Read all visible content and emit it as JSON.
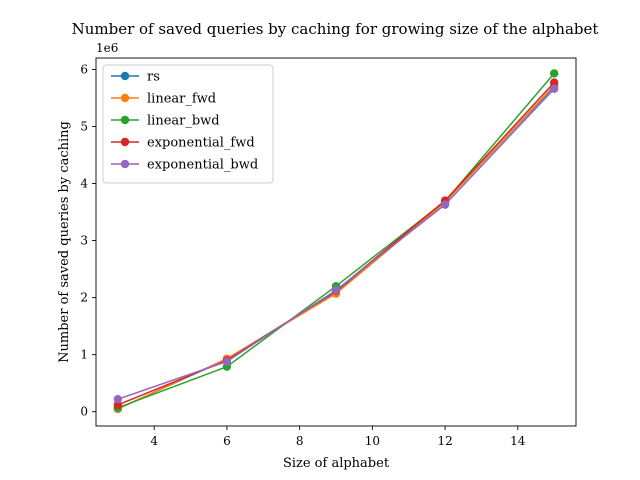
{
  "chart_data": {
    "type": "line",
    "title": "Number of saved queries by caching for growing size of the alphabet",
    "xlabel": "Size of alphabet",
    "ylabel": "Number of saved queries by caching",
    "y_offset_label": "1e6",
    "x": [
      3,
      6,
      9,
      12,
      15
    ],
    "xlim": [
      2.4,
      15.6
    ],
    "ylim": [
      -0.25,
      6.2
    ],
    "y_scale_note": "values in units of 1e6",
    "xticks": [
      4,
      6,
      8,
      10,
      12,
      14
    ],
    "yticks": [
      0,
      1,
      2,
      3,
      4,
      5,
      6
    ],
    "grid": false,
    "legend_position": "upper-left",
    "series": [
      {
        "name": "rs",
        "color": "#1f77b4",
        "values": [
          0.05,
          0.92,
          2.1,
          3.68,
          5.7
        ]
      },
      {
        "name": "linear_fwd",
        "color": "#ff7f0e",
        "values": [
          0.05,
          0.93,
          2.07,
          3.67,
          5.72
        ]
      },
      {
        "name": "linear_bwd",
        "color": "#2ca02c",
        "values": [
          0.07,
          0.79,
          2.2,
          3.69,
          5.93
        ]
      },
      {
        "name": "exponential_fwd",
        "color": "#d62728",
        "values": [
          0.12,
          0.9,
          2.12,
          3.7,
          5.77
        ]
      },
      {
        "name": "exponential_bwd",
        "color": "#9467bd",
        "values": [
          0.22,
          0.88,
          2.13,
          3.63,
          5.66
        ]
      }
    ]
  }
}
